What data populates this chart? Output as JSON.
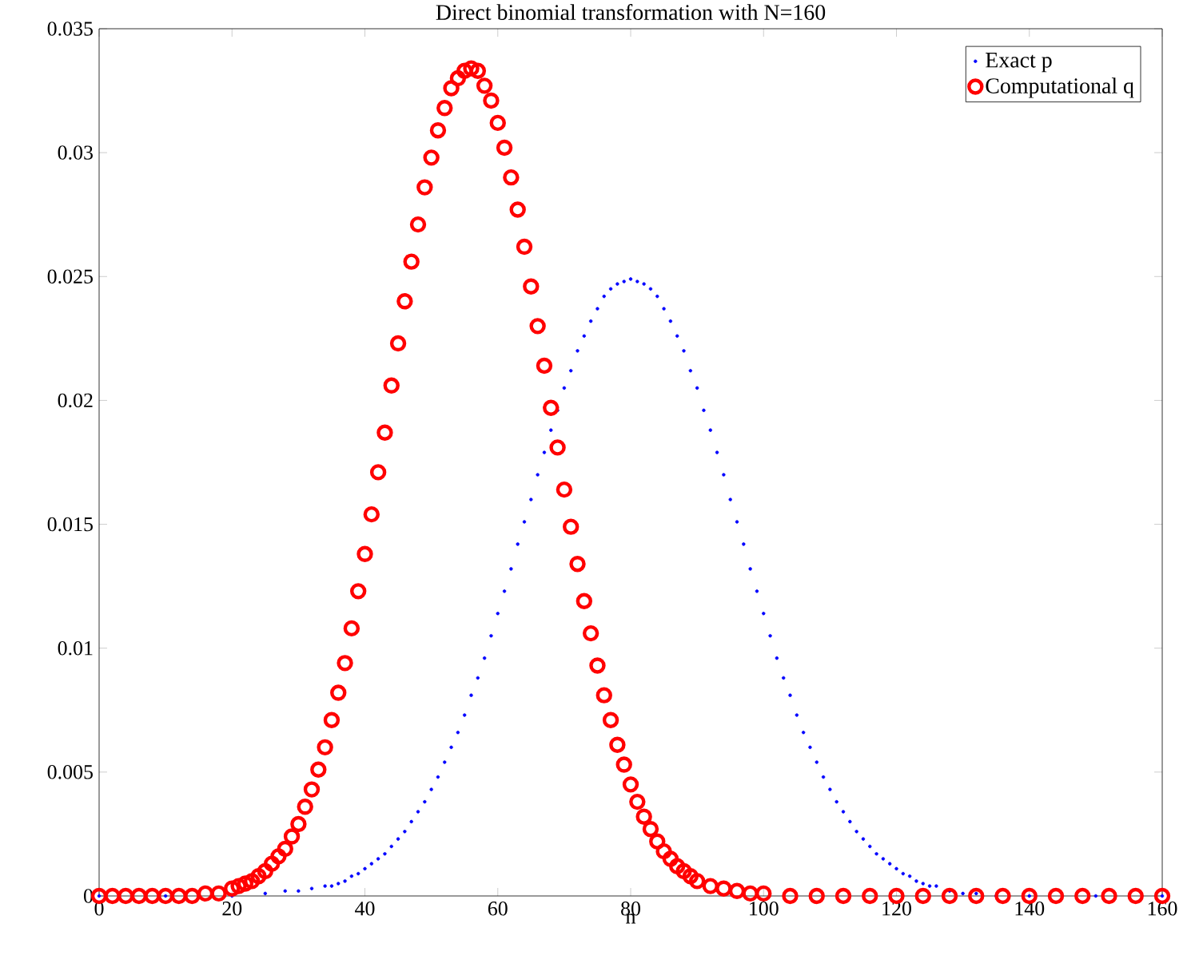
{
  "chart_data": {
    "type": "scatter",
    "title": "Direct binomial transformation with N=160",
    "xlabel": "n",
    "xlim": [
      0,
      160
    ],
    "xticks": [
      0,
      20,
      40,
      60,
      80,
      100,
      120,
      140,
      160
    ],
    "ylim": [
      0,
      0.035
    ],
    "yticks": [
      0,
      0.005,
      0.01,
      0.015,
      0.02,
      0.025,
      0.03,
      0.035
    ],
    "grid": false,
    "legend": "top right",
    "marker": "circle",
    "series": [
      {
        "name": "Exact p",
        "color": "#0000ff",
        "x": [
          0,
          10,
          20,
          25,
          28,
          30,
          32,
          34,
          35,
          36,
          37,
          38,
          39,
          40,
          41,
          42,
          43,
          44,
          45,
          46,
          47,
          48,
          49,
          50,
          51,
          52,
          53,
          54,
          55,
          56,
          57,
          58,
          59,
          60,
          61,
          62,
          63,
          64,
          65,
          66,
          67,
          68,
          69,
          70,
          71,
          72,
          73,
          74,
          75,
          76,
          77,
          78,
          79,
          80,
          81,
          82,
          83,
          84,
          85,
          86,
          87,
          88,
          89,
          90,
          91,
          92,
          93,
          94,
          95,
          96,
          97,
          98,
          99,
          100,
          101,
          102,
          103,
          104,
          105,
          106,
          107,
          108,
          109,
          110,
          111,
          112,
          113,
          114,
          115,
          116,
          117,
          118,
          119,
          120,
          121,
          122,
          123,
          124,
          125,
          126,
          128,
          130,
          132,
          135,
          140,
          150,
          160
        ],
        "values": [
          0,
          0,
          0,
          0.0001,
          0.0002,
          0.0002,
          0.0003,
          0.0004,
          0.0004,
          0.0005,
          0.0006,
          0.0008,
          0.0009,
          0.0011,
          0.0013,
          0.0015,
          0.0017,
          0.002,
          0.0023,
          0.0026,
          0.003,
          0.0034,
          0.0038,
          0.0043,
          0.0048,
          0.0054,
          0.006,
          0.0066,
          0.0073,
          0.0081,
          0.0088,
          0.0096,
          0.0105,
          0.0114,
          0.0123,
          0.0132,
          0.0142,
          0.0151,
          0.016,
          0.017,
          0.0179,
          0.0188,
          0.0196,
          0.0205,
          0.0212,
          0.022,
          0.0226,
          0.0232,
          0.0237,
          0.0242,
          0.0245,
          0.0247,
          0.0248,
          0.0249,
          0.0248,
          0.0247,
          0.0245,
          0.0242,
          0.0237,
          0.0232,
          0.0226,
          0.022,
          0.0212,
          0.0205,
          0.0196,
          0.0188,
          0.0179,
          0.017,
          0.016,
          0.0151,
          0.0142,
          0.0132,
          0.0123,
          0.0114,
          0.0105,
          0.0096,
          0.0088,
          0.0081,
          0.0073,
          0.0066,
          0.006,
          0.0054,
          0.0048,
          0.0043,
          0.0038,
          0.0034,
          0.003,
          0.0026,
          0.0023,
          0.002,
          0.0017,
          0.0015,
          0.0013,
          0.0011,
          0.0009,
          0.0008,
          0.0006,
          0.0005,
          0.0004,
          0.0004,
          0.0002,
          0.0001,
          0.0001,
          0,
          0,
          0,
          0
        ]
      },
      {
        "name": "Computational q",
        "color": "#ff0000",
        "x": [
          0,
          2,
          4,
          6,
          8,
          10,
          12,
          14,
          16,
          18,
          20,
          21,
          22,
          23,
          24,
          25,
          26,
          27,
          28,
          29,
          30,
          31,
          32,
          33,
          34,
          35,
          36,
          37,
          38,
          39,
          40,
          41,
          42,
          43,
          44,
          45,
          46,
          47,
          48,
          49,
          50,
          51,
          52,
          53,
          54,
          55,
          56,
          57,
          58,
          59,
          60,
          61,
          62,
          63,
          64,
          65,
          66,
          67,
          68,
          69,
          70,
          71,
          72,
          73,
          74,
          75,
          76,
          77,
          78,
          79,
          80,
          81,
          82,
          83,
          84,
          85,
          86,
          87,
          88,
          89,
          90,
          92,
          94,
          96,
          98,
          100,
          104,
          108,
          112,
          116,
          120,
          124,
          128,
          132,
          136,
          140,
          144,
          148,
          152,
          156,
          160
        ],
        "values": [
          0,
          0,
          0,
          0,
          0,
          0,
          0,
          0,
          0.0001,
          0.0001,
          0.0003,
          0.0004,
          0.0005,
          0.0006,
          0.0008,
          0.001,
          0.0013,
          0.0016,
          0.0019,
          0.0024,
          0.0029,
          0.0036,
          0.0043,
          0.0051,
          0.006,
          0.0071,
          0.0082,
          0.0094,
          0.0108,
          0.0123,
          0.0138,
          0.0154,
          0.0171,
          0.0187,
          0.0206,
          0.0223,
          0.024,
          0.0256,
          0.0271,
          0.0286,
          0.0298,
          0.0309,
          0.0318,
          0.0326,
          0.033,
          0.0333,
          0.0334,
          0.0333,
          0.0327,
          0.0321,
          0.0312,
          0.0302,
          0.029,
          0.0277,
          0.0262,
          0.0246,
          0.023,
          0.0214,
          0.0197,
          0.0181,
          0.0164,
          0.0149,
          0.0134,
          0.0119,
          0.0106,
          0.0093,
          0.0081,
          0.0071,
          0.0061,
          0.0053,
          0.0045,
          0.0038,
          0.0032,
          0.0027,
          0.0022,
          0.0018,
          0.0015,
          0.0012,
          0.001,
          0.0008,
          0.0006,
          0.0004,
          0.0003,
          0.0002,
          0.0001,
          0.0001,
          0,
          0,
          0,
          0,
          0,
          0,
          0,
          0,
          0,
          0,
          0,
          0,
          0,
          0,
          0
        ]
      }
    ]
  }
}
